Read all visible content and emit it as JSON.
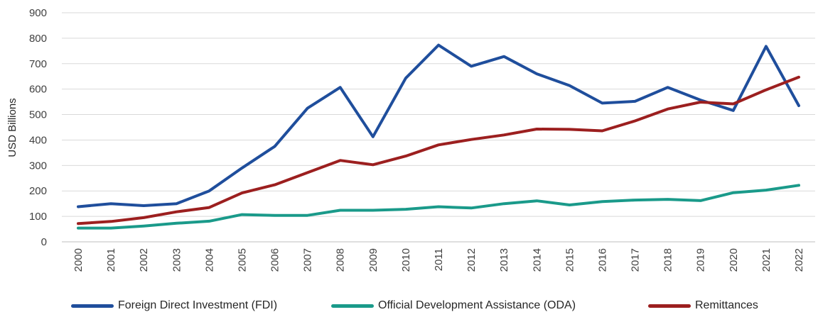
{
  "chart_data": {
    "type": "line",
    "title": "",
    "xlabel": "",
    "ylabel": "USD Billions",
    "ylim": [
      0,
      900
    ],
    "yticks": [
      "0",
      "100",
      "200",
      "300",
      "400",
      "500",
      "600",
      "700",
      "800",
      "900"
    ],
    "categories": [
      "2000",
      "2001",
      "2002",
      "2003",
      "2004",
      "2005",
      "2006",
      "2007",
      "2008",
      "2009",
      "2010",
      "2011",
      "2012",
      "2013",
      "2014",
      "2015",
      "2016",
      "2017",
      "2018",
      "2019",
      "2020",
      "2021",
      "2022"
    ],
    "grid": true,
    "legend_position": "bottom",
    "series": [
      {
        "name": "Foreign Direct Investment (FDI)",
        "color": "#1f4e9c",
        "values": [
          138,
          150,
          142,
          150,
          200,
          290,
          375,
          525,
          607,
          413,
          643,
          773,
          690,
          728,
          660,
          614,
          545,
          552,
          607,
          557,
          516,
          768,
          535
        ]
      },
      {
        "name": "Official Development Assistance (ODA)",
        "color": "#1a9a8a",
        "values": [
          54,
          54,
          62,
          73,
          81,
          107,
          104,
          104,
          124,
          124,
          128,
          138,
          133,
          150,
          161,
          145,
          158,
          164,
          167,
          162,
          193,
          203,
          222
        ]
      },
      {
        "name": "Remittances",
        "color": "#9c1f1f",
        "values": [
          72,
          80,
          95,
          118,
          135,
          192,
          224,
          272,
          320,
          303,
          337,
          381,
          402,
          420,
          443,
          442,
          436,
          475,
          522,
          549,
          542,
          597,
          647
        ]
      }
    ]
  }
}
